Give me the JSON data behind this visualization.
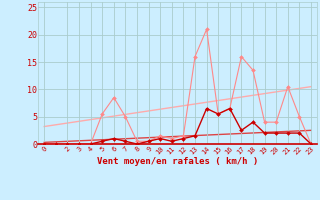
{
  "x": [
    0,
    1,
    2,
    3,
    4,
    5,
    6,
    7,
    8,
    9,
    10,
    11,
    12,
    13,
    14,
    15,
    16,
    17,
    18,
    19,
    20,
    21,
    22,
    23
  ],
  "gust": [
    0,
    0,
    0,
    0,
    0,
    5.5,
    8.5,
    5.0,
    0.5,
    0.5,
    1.5,
    1.0,
    1.5,
    16.0,
    21.0,
    5.5,
    6.5,
    16.0,
    13.5,
    4.0,
    4.0,
    10.5,
    5.0,
    0.0
  ],
  "wind": [
    0,
    0,
    0,
    0,
    0,
    0.5,
    1.0,
    0.5,
    0.0,
    0.5,
    1.0,
    0.5,
    1.0,
    1.5,
    6.5,
    5.5,
    6.5,
    2.5,
    4.0,
    2.0,
    2.0,
    2.0,
    2.0,
    0.0
  ],
  "trend_gust": [
    3.2,
    10.5
  ],
  "trend_wind": [
    0.3,
    2.5
  ],
  "bg_color": "#cceeff",
  "grid_color": "#aacccc",
  "gust_color": "#ff8888",
  "wind_color": "#cc0000",
  "trend_gust_color": "#ffaaaa",
  "trend_wind_color": "#dd4444",
  "xlabel": "Vent moyen/en rafales ( km/h )",
  "xlabel_color": "#cc0000",
  "tick_color": "#cc0000",
  "ylim": [
    0,
    26
  ],
  "xlim": [
    -0.5,
    23.5
  ],
  "yticks": [
    0,
    5,
    10,
    15,
    20,
    25
  ],
  "xticks": [
    0,
    2,
    3,
    4,
    5,
    6,
    7,
    8,
    9,
    10,
    11,
    12,
    13,
    14,
    15,
    16,
    17,
    18,
    19,
    20,
    21,
    22,
    23
  ]
}
